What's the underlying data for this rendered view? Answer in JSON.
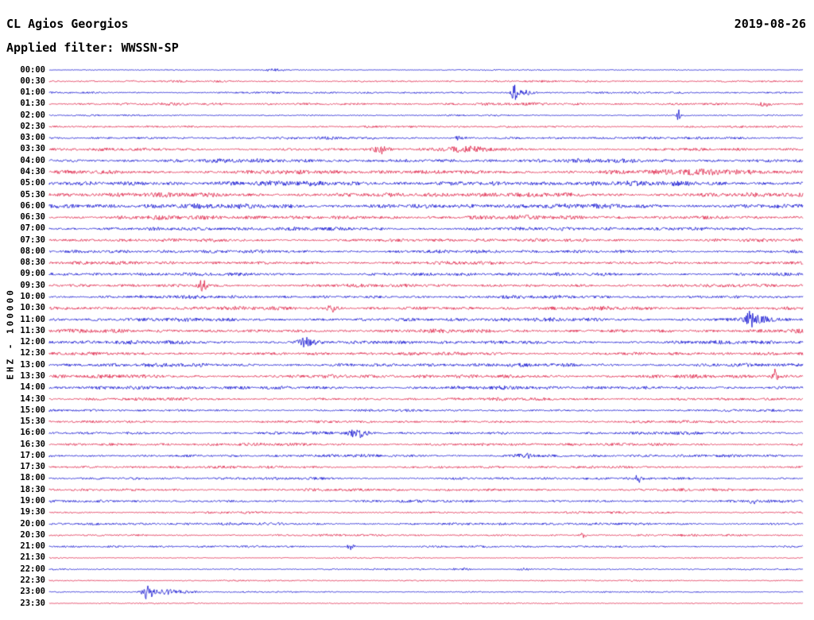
{
  "header": {
    "station": "CL Agios Georgios",
    "date": "2019-08-26",
    "filter_line": "Applied filter: WWSSN-SP"
  },
  "chart_data": {
    "type": "line",
    "subtype": "helicorder-seismogram",
    "title": "CL Agios Georgios",
    "date": "2019-08-26",
    "filter": "WWSSN-SP",
    "channel_label": "EHZ - 100000",
    "trace_interval_minutes": 30,
    "x_range_minutes_per_row": 30,
    "legend_position": "none",
    "grid": false,
    "colors": {
      "even": "#0000cd",
      "odd": "#dc143c"
    },
    "rows": [
      {
        "time": "00:00",
        "amp": 0.8,
        "events": [
          {
            "x": 0.3,
            "a": 1.2,
            "w": 12
          }
        ]
      },
      {
        "time": "00:30",
        "amp": 1.5,
        "events": []
      },
      {
        "time": "01:00",
        "amp": 1.5,
        "events": [
          {
            "x": 0.617,
            "a": 11,
            "w": 2.2
          },
          {
            "x": 0.63,
            "a": 3,
            "w": 9
          }
        ]
      },
      {
        "time": "01:30",
        "amp": 2.0,
        "events": [
          {
            "x": 0.95,
            "a": 2.5,
            "w": 6
          }
        ]
      },
      {
        "time": "02:00",
        "amp": 1.2,
        "events": [
          {
            "x": 0.835,
            "a": 9,
            "w": 1.2
          }
        ]
      },
      {
        "time": "02:30",
        "amp": 1.5,
        "events": []
      },
      {
        "time": "03:00",
        "amp": 2.0,
        "events": [
          {
            "x": 0.545,
            "a": 3,
            "w": 4
          }
        ]
      },
      {
        "time": "03:30",
        "amp": 2.2,
        "events": [
          {
            "x": 0.44,
            "a": 5,
            "w": 6
          },
          {
            "x": 0.55,
            "a": 2.5,
            "w": 25
          }
        ]
      },
      {
        "time": "04:00",
        "amp": 3.0,
        "events": []
      },
      {
        "time": "04:30",
        "amp": 3.2,
        "events": [
          {
            "x": 0.88,
            "a": 2,
            "w": 40
          }
        ]
      },
      {
        "time": "05:00",
        "amp": 3.8,
        "events": []
      },
      {
        "time": "05:30",
        "amp": 3.5,
        "events": []
      },
      {
        "time": "06:00",
        "amp": 3.8,
        "events": []
      },
      {
        "time": "06:30",
        "amp": 3.2,
        "events": []
      },
      {
        "time": "07:00",
        "amp": 2.8,
        "events": []
      },
      {
        "time": "07:30",
        "amp": 2.5,
        "events": []
      },
      {
        "time": "08:00",
        "amp": 2.5,
        "events": []
      },
      {
        "time": "08:30",
        "amp": 2.5,
        "events": []
      },
      {
        "time": "09:00",
        "amp": 2.5,
        "events": []
      },
      {
        "time": "09:30",
        "amp": 2.5,
        "events": [
          {
            "x": 0.203,
            "a": 8,
            "w": 3.5
          }
        ]
      },
      {
        "time": "10:00",
        "amp": 2.5,
        "events": []
      },
      {
        "time": "10:30",
        "amp": 2.8,
        "events": [
          {
            "x": 0.377,
            "a": 4,
            "w": 5
          }
        ]
      },
      {
        "time": "11:00",
        "amp": 2.8,
        "events": [
          {
            "x": 0.929,
            "a": 13,
            "w": 2.8
          },
          {
            "x": 0.94,
            "a": 4,
            "w": 10
          }
        ]
      },
      {
        "time": "11:30",
        "amp": 2.8,
        "events": []
      },
      {
        "time": "12:00",
        "amp": 2.8,
        "events": [
          {
            "x": 0.34,
            "a": 5,
            "w": 8
          }
        ]
      },
      {
        "time": "12:30",
        "amp": 2.5,
        "events": []
      },
      {
        "time": "13:00",
        "amp": 2.8,
        "events": []
      },
      {
        "time": "13:30",
        "amp": 2.8,
        "events": [
          {
            "x": 0.963,
            "a": 9,
            "w": 2.2
          }
        ]
      },
      {
        "time": "14:00",
        "amp": 2.8,
        "events": []
      },
      {
        "time": "14:30",
        "amp": 2.2,
        "events": []
      },
      {
        "time": "15:00",
        "amp": 1.8,
        "events": []
      },
      {
        "time": "15:30",
        "amp": 2.0,
        "events": []
      },
      {
        "time": "16:00",
        "amp": 2.2,
        "events": [
          {
            "x": 0.408,
            "a": 5,
            "w": 8
          }
        ]
      },
      {
        "time": "16:30",
        "amp": 2.2,
        "events": []
      },
      {
        "time": "17:00",
        "amp": 2.2,
        "events": [
          {
            "x": 0.63,
            "a": 4,
            "w": 6
          }
        ]
      },
      {
        "time": "17:30",
        "amp": 2.0,
        "events": []
      },
      {
        "time": "18:00",
        "amp": 2.0,
        "events": [
          {
            "x": 0.782,
            "a": 4,
            "w": 3
          }
        ]
      },
      {
        "time": "18:30",
        "amp": 2.0,
        "events": []
      },
      {
        "time": "19:00",
        "amp": 2.0,
        "events": [
          {
            "x": 0.934,
            "a": 3,
            "w": 3
          }
        ]
      },
      {
        "time": "19:30",
        "amp": 1.6,
        "events": []
      },
      {
        "time": "20:00",
        "amp": 2.0,
        "events": []
      },
      {
        "time": "20:30",
        "amp": 1.6,
        "events": [
          {
            "x": 0.708,
            "a": 3,
            "w": 3
          }
        ]
      },
      {
        "time": "21:00",
        "amp": 1.6,
        "events": [
          {
            "x": 0.4,
            "a": 4,
            "w": 3
          }
        ]
      },
      {
        "time": "21:30",
        "amp": 0.9,
        "events": []
      },
      {
        "time": "22:00",
        "amp": 1.1,
        "events": [
          {
            "x": 0.545,
            "a": 1.5,
            "w": 8
          },
          {
            "x": 0.63,
            "a": 1.5,
            "w": 6
          }
        ]
      },
      {
        "time": "22:30",
        "amp": 1.1,
        "events": []
      },
      {
        "time": "23:00",
        "amp": 1.1,
        "events": [
          {
            "x": 0.13,
            "a": 8,
            "w": 5
          },
          {
            "x": 0.16,
            "a": 3,
            "w": 18
          }
        ]
      },
      {
        "time": "23:30",
        "amp": 0.9,
        "events": []
      }
    ]
  }
}
